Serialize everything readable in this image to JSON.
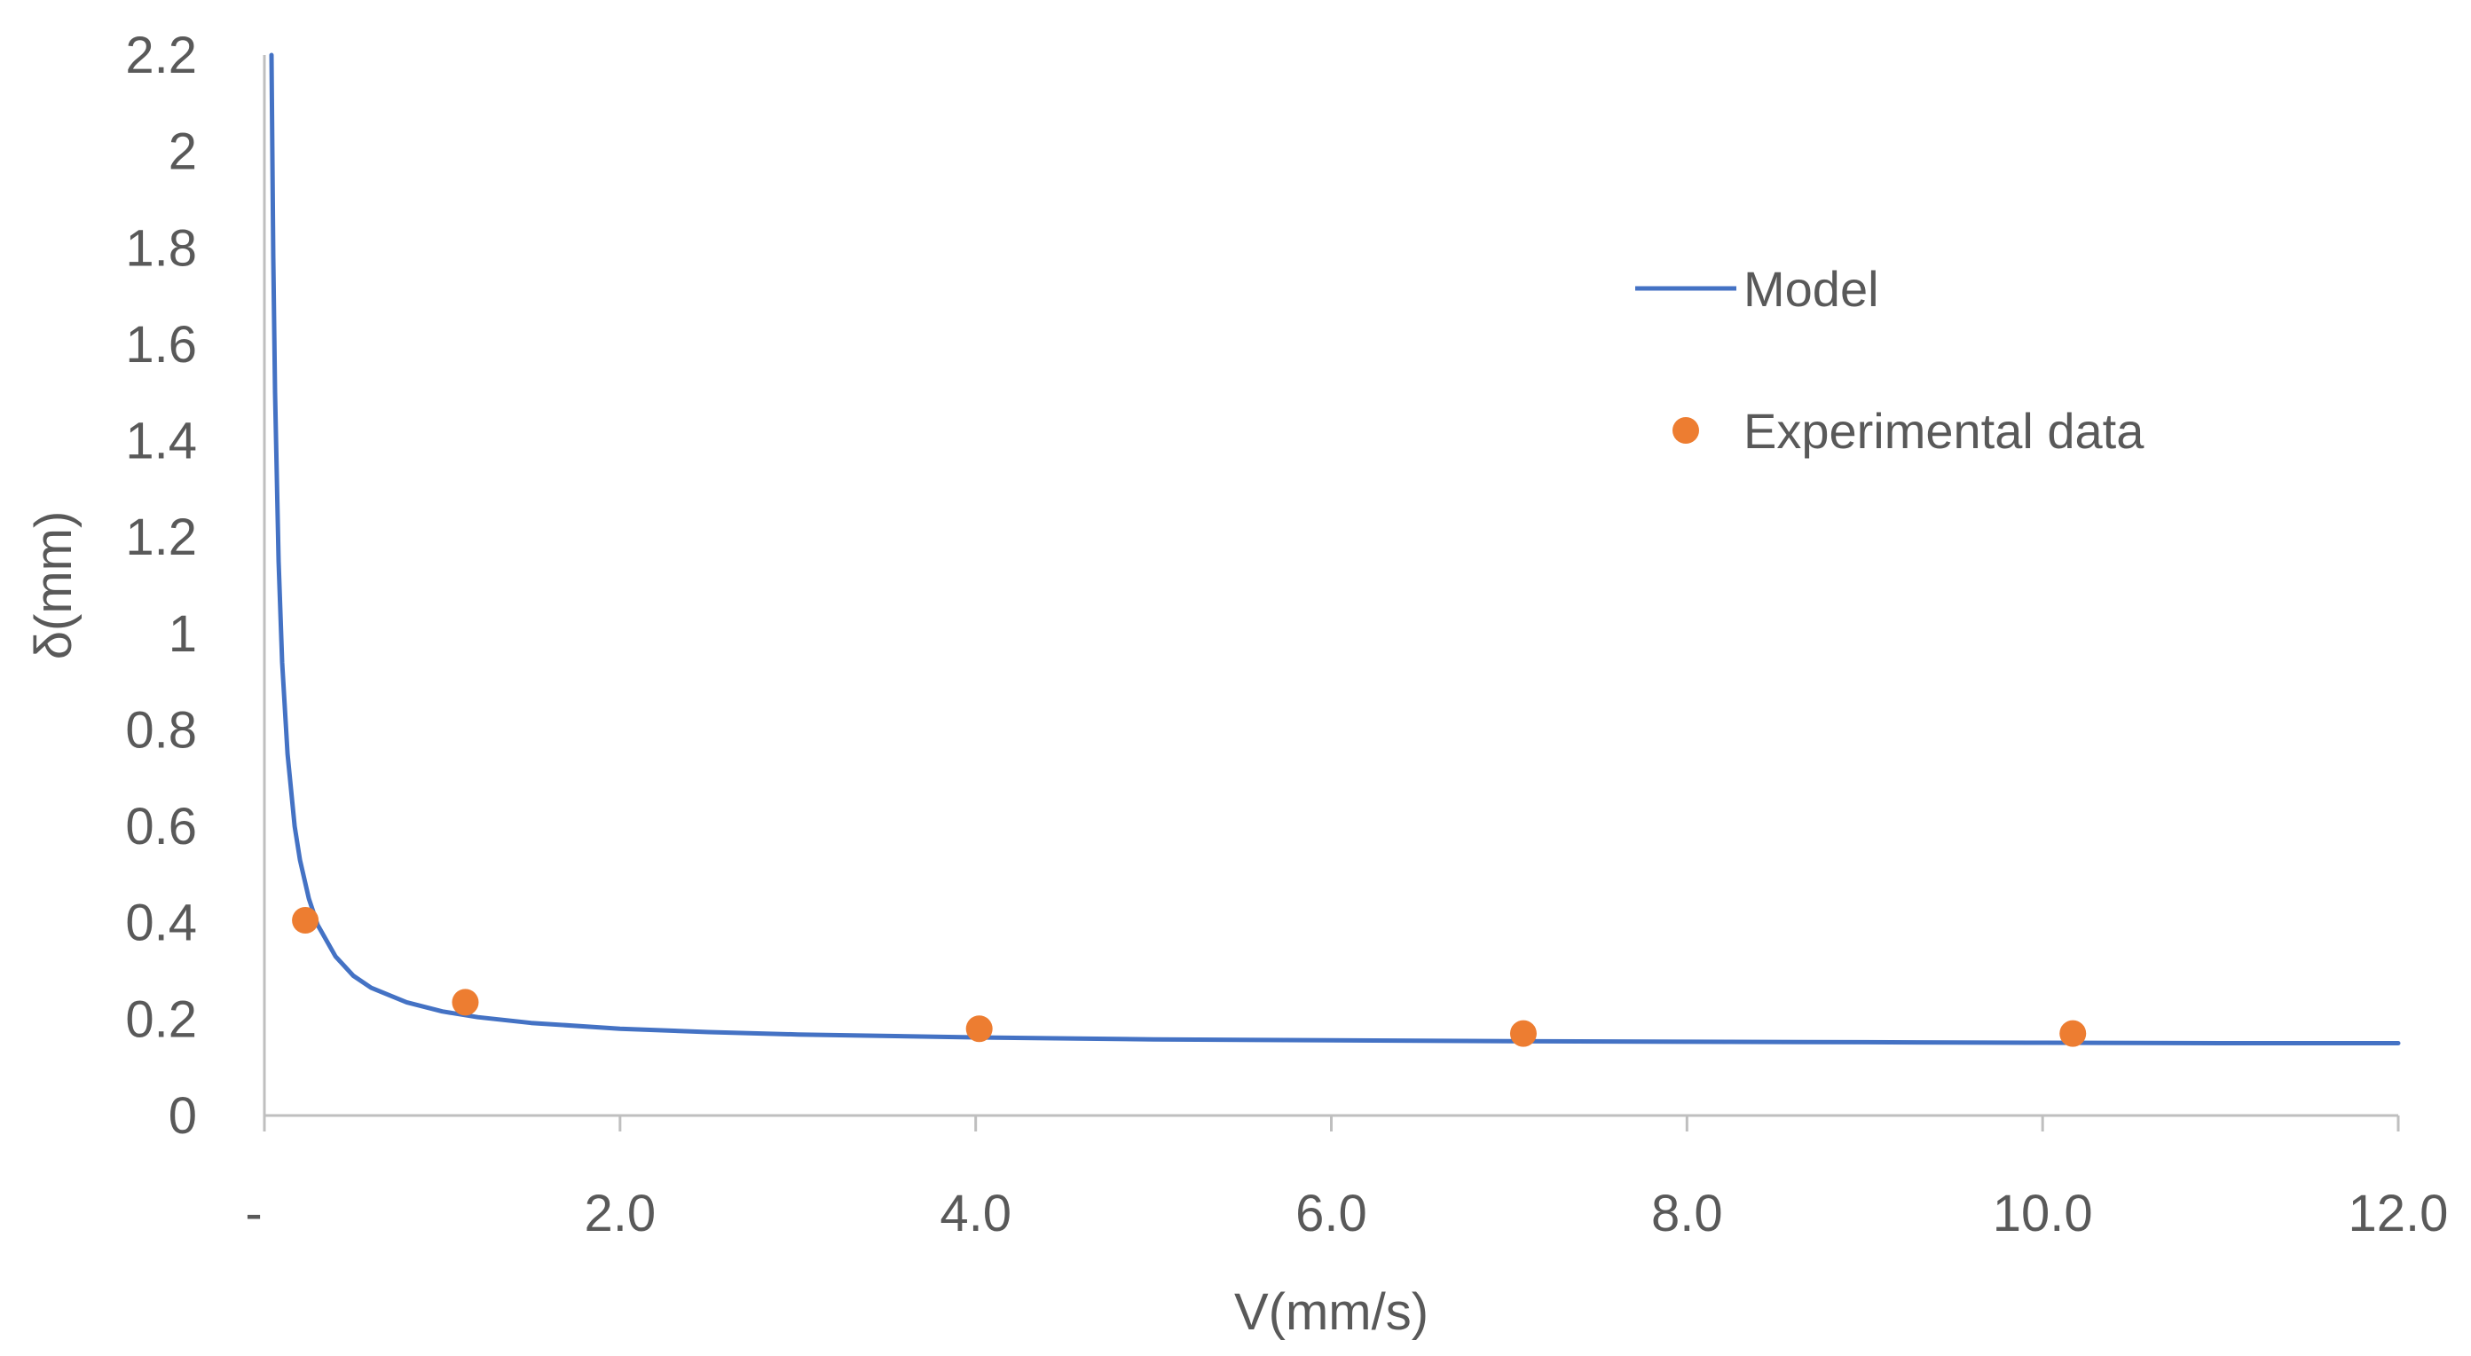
{
  "chart_data": {
    "type": "line+scatter",
    "title": "",
    "xlabel": "V(mm/s)",
    "ylabel": "δ(mm)",
    "xlim": [
      0,
      12
    ],
    "ylim": [
      0,
      2.2
    ],
    "x_ticks": [
      0,
      2,
      4,
      6,
      8,
      10,
      12
    ],
    "x_tick_labels": [
      "-",
      "2.0",
      "4.0",
      "6.0",
      "8.0",
      "10.0",
      "12.0"
    ],
    "y_ticks": [
      0,
      0.2,
      0.4,
      0.6,
      0.8,
      1,
      1.2,
      1.4,
      1.6,
      1.8,
      2,
      2.2
    ],
    "y_tick_labels": [
      "0",
      "0.2",
      "0.4",
      "0.6",
      "0.8",
      "1",
      "1.2",
      "1.4",
      "1.6",
      "1.8",
      "2",
      "2.2"
    ],
    "grid": false,
    "legend_position": "top-right",
    "series": [
      {
        "name": "Model",
        "kind": "line",
        "color": "#4472C4",
        "x": [
          0.04,
          0.05,
          0.06,
          0.08,
          0.1,
          0.13,
          0.17,
          0.2,
          0.25,
          0.3,
          0.4,
          0.5,
          0.6,
          0.8,
          1.0,
          1.2,
          1.5,
          2.0,
          2.5,
          3.0,
          4.0,
          5.0,
          6.0,
          7.0,
          8.0,
          9.0,
          10.0,
          11.0,
          12.0
        ],
        "y": [
          2.2,
          1.78,
          1.5,
          1.15,
          0.94,
          0.75,
          0.6,
          0.53,
          0.45,
          0.395,
          0.33,
          0.29,
          0.265,
          0.235,
          0.216,
          0.204,
          0.192,
          0.18,
          0.173,
          0.168,
          0.162,
          0.158,
          0.156,
          0.154,
          0.153,
          0.152,
          0.151,
          0.15,
          0.15
        ]
      },
      {
        "name": "Experimental data",
        "kind": "scatter",
        "color": "#ED7D31",
        "x": [
          0.23,
          1.13,
          4.02,
          7.08,
          10.17
        ],
        "y": [
          0.405,
          0.235,
          0.18,
          0.17,
          0.17
        ]
      }
    ]
  }
}
